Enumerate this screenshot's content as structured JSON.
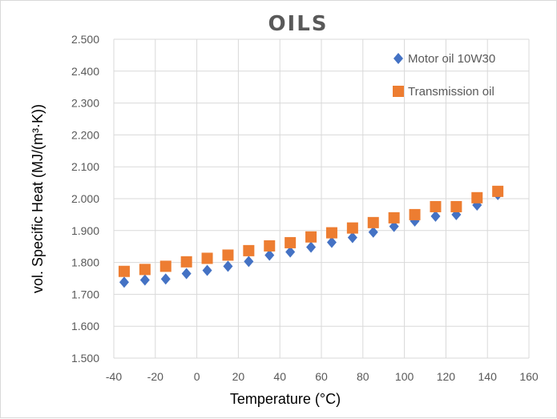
{
  "chart_data": {
    "type": "scatter",
    "title": "OILS",
    "xlabel": "Temperature (°C)",
    "ylabel": "vol. Specific Heat (MJ/(m³·K))",
    "xlim": [
      -40,
      160
    ],
    "ylim": [
      1.5,
      2.5
    ],
    "x_ticks": [
      -40,
      -20,
      0,
      20,
      40,
      60,
      80,
      100,
      120,
      140,
      160
    ],
    "x_tick_labels": [
      "-40",
      "-20",
      "0",
      "20",
      "40",
      "60",
      "80",
      "100",
      "120",
      "140",
      "160"
    ],
    "y_ticks": [
      1.5,
      1.6,
      1.7,
      1.8,
      1.9,
      2.0,
      2.1,
      2.2,
      2.3,
      2.4,
      2.5
    ],
    "y_tick_labels": [
      "1.500",
      "1.600",
      "1.700",
      "1.800",
      "1.900",
      "2.000",
      "2.100",
      "2.200",
      "2.300",
      "2.400",
      "2.500"
    ],
    "grid": true,
    "legend_position": "top-right",
    "series": [
      {
        "name": "Motor oil 10W30",
        "marker": "diamond",
        "color": "#4472C4",
        "x": [
          -35,
          -25,
          -15,
          -5,
          5,
          15,
          25,
          35,
          45,
          55,
          65,
          75,
          85,
          95,
          105,
          115,
          125,
          135,
          145
        ],
        "y": [
          1.738,
          1.745,
          1.748,
          1.765,
          1.775,
          1.788,
          1.803,
          1.823,
          1.833,
          1.848,
          1.863,
          1.878,
          1.895,
          1.913,
          1.93,
          1.945,
          1.95,
          1.98,
          2.013
        ]
      },
      {
        "name": "Transmission oil",
        "marker": "square",
        "color": "#ED7D31",
        "x": [
          -35,
          -25,
          -15,
          -5,
          5,
          15,
          25,
          35,
          45,
          55,
          65,
          75,
          85,
          95,
          105,
          115,
          125,
          135,
          145
        ],
        "y": [
          1.772,
          1.778,
          1.788,
          1.802,
          1.813,
          1.823,
          1.837,
          1.852,
          1.862,
          1.88,
          1.893,
          1.908,
          1.925,
          1.94,
          1.95,
          1.975,
          1.975,
          2.003,
          2.023
        ]
      }
    ]
  }
}
